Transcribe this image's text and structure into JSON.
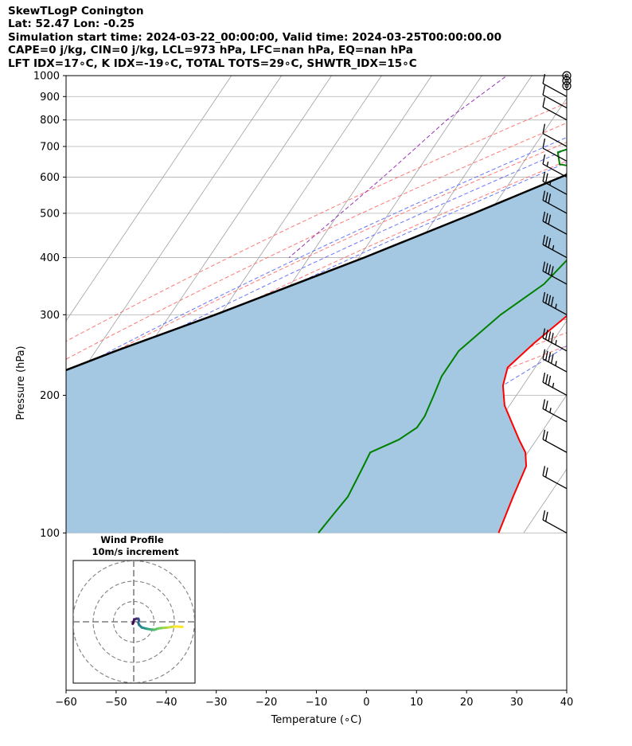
{
  "header": {
    "line1": "SkewTLogP Conington",
    "line2": "Lat: 52.47   Lon: -0.25",
    "line3": "Simulation start time: 2024-03-22_00:00:00, Valid time: 2024-03-25T00:00:00.00",
    "line4": "CAPE=0 j/kg, CIN=0 j/kg, LCL=973 hPa, LFC=nan hPa, EQ=nan hPa",
    "line5": "LFT IDX=17∘C, K IDX=-19∘C, TOTAL TOTS=29∘C, SHWTR_IDX=15∘C"
  },
  "chart_data": {
    "type": "skewt",
    "xlabel": "Temperature (∘C)",
    "ylabel": "Pressure (hPa)",
    "xlim": [
      -60,
      40
    ],
    "ylim": [
      1050,
      100
    ],
    "x_ticks": [
      -60,
      -50,
      -40,
      -30,
      -20,
      -10,
      0,
      10,
      20,
      30,
      40
    ],
    "y_ticks": [
      1000,
      900,
      800,
      700,
      600,
      500,
      400,
      300,
      200,
      100
    ],
    "grid": true,
    "temperature": [
      [
        1012,
        4.5
      ],
      [
        1000,
        6.5
      ],
      [
        990,
        7.0
      ],
      [
        970,
        6.0
      ],
      [
        900,
        4.0
      ],
      [
        850,
        3.5
      ],
      [
        800,
        3.5
      ],
      [
        750,
        3.5
      ],
      [
        700,
        2.5
      ],
      [
        600,
        1.5
      ],
      [
        550,
        1.2
      ],
      [
        500,
        0
      ],
      [
        450,
        -2.5
      ],
      [
        400,
        -4.8
      ],
      [
        350,
        -6.5
      ],
      [
        300,
        -10.5
      ],
      [
        260,
        -13.5
      ],
      [
        230,
        -15.5
      ],
      [
        210,
        -14.0
      ],
      [
        190,
        -11.0
      ],
      [
        160,
        -3.5
      ],
      [
        150,
        -0.5
      ],
      [
        140,
        1.5
      ],
      [
        120,
        3.0
      ],
      [
        100,
        5.0
      ]
    ],
    "dewpoint": [
      [
        1012,
        1.0
      ],
      [
        990,
        1.0
      ],
      [
        940,
        1.5
      ],
      [
        900,
        -2.0
      ],
      [
        850,
        -8.0
      ],
      [
        820,
        -12.0
      ],
      [
        780,
        -20.0
      ],
      [
        730,
        -27.5
      ],
      [
        680,
        -34.5
      ],
      [
        640,
        -32.5
      ],
      [
        600,
        -16.0
      ],
      [
        550,
        -10.5
      ],
      [
        500,
        -12.0
      ],
      [
        450,
        -14.5
      ],
      [
        400,
        -18.0
      ],
      [
        350,
        -19.5
      ],
      [
        300,
        -24.0
      ],
      [
        250,
        -27.5
      ],
      [
        220,
        -27.5
      ],
      [
        200,
        -26.5
      ],
      [
        180,
        -25.5
      ],
      [
        170,
        -25.5
      ],
      [
        160,
        -27.5
      ],
      [
        150,
        -31.5
      ],
      [
        140,
        -31.0
      ],
      [
        120,
        -30.0
      ],
      [
        110,
        -30.5
      ],
      [
        100,
        -31.0
      ]
    ],
    "parcel": [
      [
        1012,
        4.5
      ],
      [
        973,
        1.2
      ],
      [
        900,
        -3.5
      ],
      [
        850,
        -7.0
      ],
      [
        800,
        -11.0
      ],
      [
        700,
        -20.0
      ],
      [
        600,
        -30.5
      ],
      [
        500,
        -43.0
      ],
      [
        400,
        -59.0
      ],
      [
        300,
        -81.0
      ],
      [
        250,
        -96.0
      ],
      [
        200,
        -113.0
      ],
      [
        150,
        -134.0
      ],
      [
        100,
        -165.0
      ]
    ],
    "isotherms": [
      -110,
      -100,
      -90,
      -80,
      -70,
      -60,
      -50,
      -40,
      -30,
      -20,
      -10,
      0,
      10,
      20,
      30,
      40
    ],
    "dry_adiabats": [
      -30,
      -20,
      -10,
      0,
      10,
      20,
      30,
      40,
      50,
      60,
      70,
      80,
      90,
      100,
      110,
      120
    ],
    "moist_adiabats": [
      -15,
      -10,
      -5,
      0,
      5,
      10,
      15,
      20,
      25,
      30,
      35
    ],
    "mixing_ratio_line": [
      [
        1050,
        -53.5
      ],
      [
        1000,
        -55.0
      ],
      [
        800,
        -61.0
      ],
      [
        600,
        -66.0
      ],
      [
        400,
        -74.0
      ]
    ],
    "wind_barbs": [
      {
        "p": 1000,
        "speed_kt": 0
      },
      {
        "p": 975,
        "speed_kt": 0
      },
      {
        "p": 950,
        "speed_kt": 0
      },
      {
        "p": 900,
        "speed_kt": 10
      },
      {
        "p": 850,
        "speed_kt": 10
      },
      {
        "p": 800,
        "speed_kt": 10
      },
      {
        "p": 700,
        "speed_kt": 10
      },
      {
        "p": 650,
        "speed_kt": 10
      },
      {
        "p": 600,
        "speed_kt": 15
      },
      {
        "p": 550,
        "speed_kt": 25
      },
      {
        "p": 500,
        "speed_kt": 30
      },
      {
        "p": 450,
        "speed_kt": 30
      },
      {
        "p": 400,
        "speed_kt": 35
      },
      {
        "p": 350,
        "speed_kt": 40
      },
      {
        "p": 300,
        "speed_kt": 45
      },
      {
        "p": 250,
        "speed_kt": 45
      },
      {
        "p": 225,
        "speed_kt": 45
      },
      {
        "p": 200,
        "speed_kt": 35
      },
      {
        "p": 175,
        "speed_kt": 25
      },
      {
        "p": 150,
        "speed_kt": 20
      },
      {
        "p": 125,
        "speed_kt": 20
      },
      {
        "p": 100,
        "speed_kt": 20
      }
    ],
    "hodograph": {
      "title_line1": "Wind Profile",
      "title_line2": "10m/s increment",
      "ring_spacing_ms": 10,
      "points": [
        [
          -0.5,
          -1.0
        ],
        [
          0.2,
          1.0
        ],
        [
          1.2,
          1.5
        ],
        [
          2.3,
          1.5
        ],
        [
          2.6,
          0.6
        ],
        [
          2.2,
          -0.3
        ],
        [
          2.7,
          -1.6
        ],
        [
          4.0,
          -2.8
        ],
        [
          6.3,
          -3.4
        ],
        [
          8.5,
          -3.8
        ],
        [
          10.0,
          -4.0
        ],
        [
          12.0,
          -3.3
        ],
        [
          14.5,
          -3.0
        ],
        [
          17.0,
          -2.8
        ],
        [
          20.0,
          -2.3
        ],
        [
          24.0,
          -2.5
        ]
      ]
    }
  },
  "colors": {
    "temperature": "#ff0000",
    "dewpoint": "#008000",
    "parcel": "#000000",
    "fill": "#a4c8e1",
    "isotherm": "#a0a0a0",
    "dry_adiabat": "#ff6060",
    "moist_adiabat": "#4c5cff",
    "mixing_ratio": "#9933bb"
  }
}
